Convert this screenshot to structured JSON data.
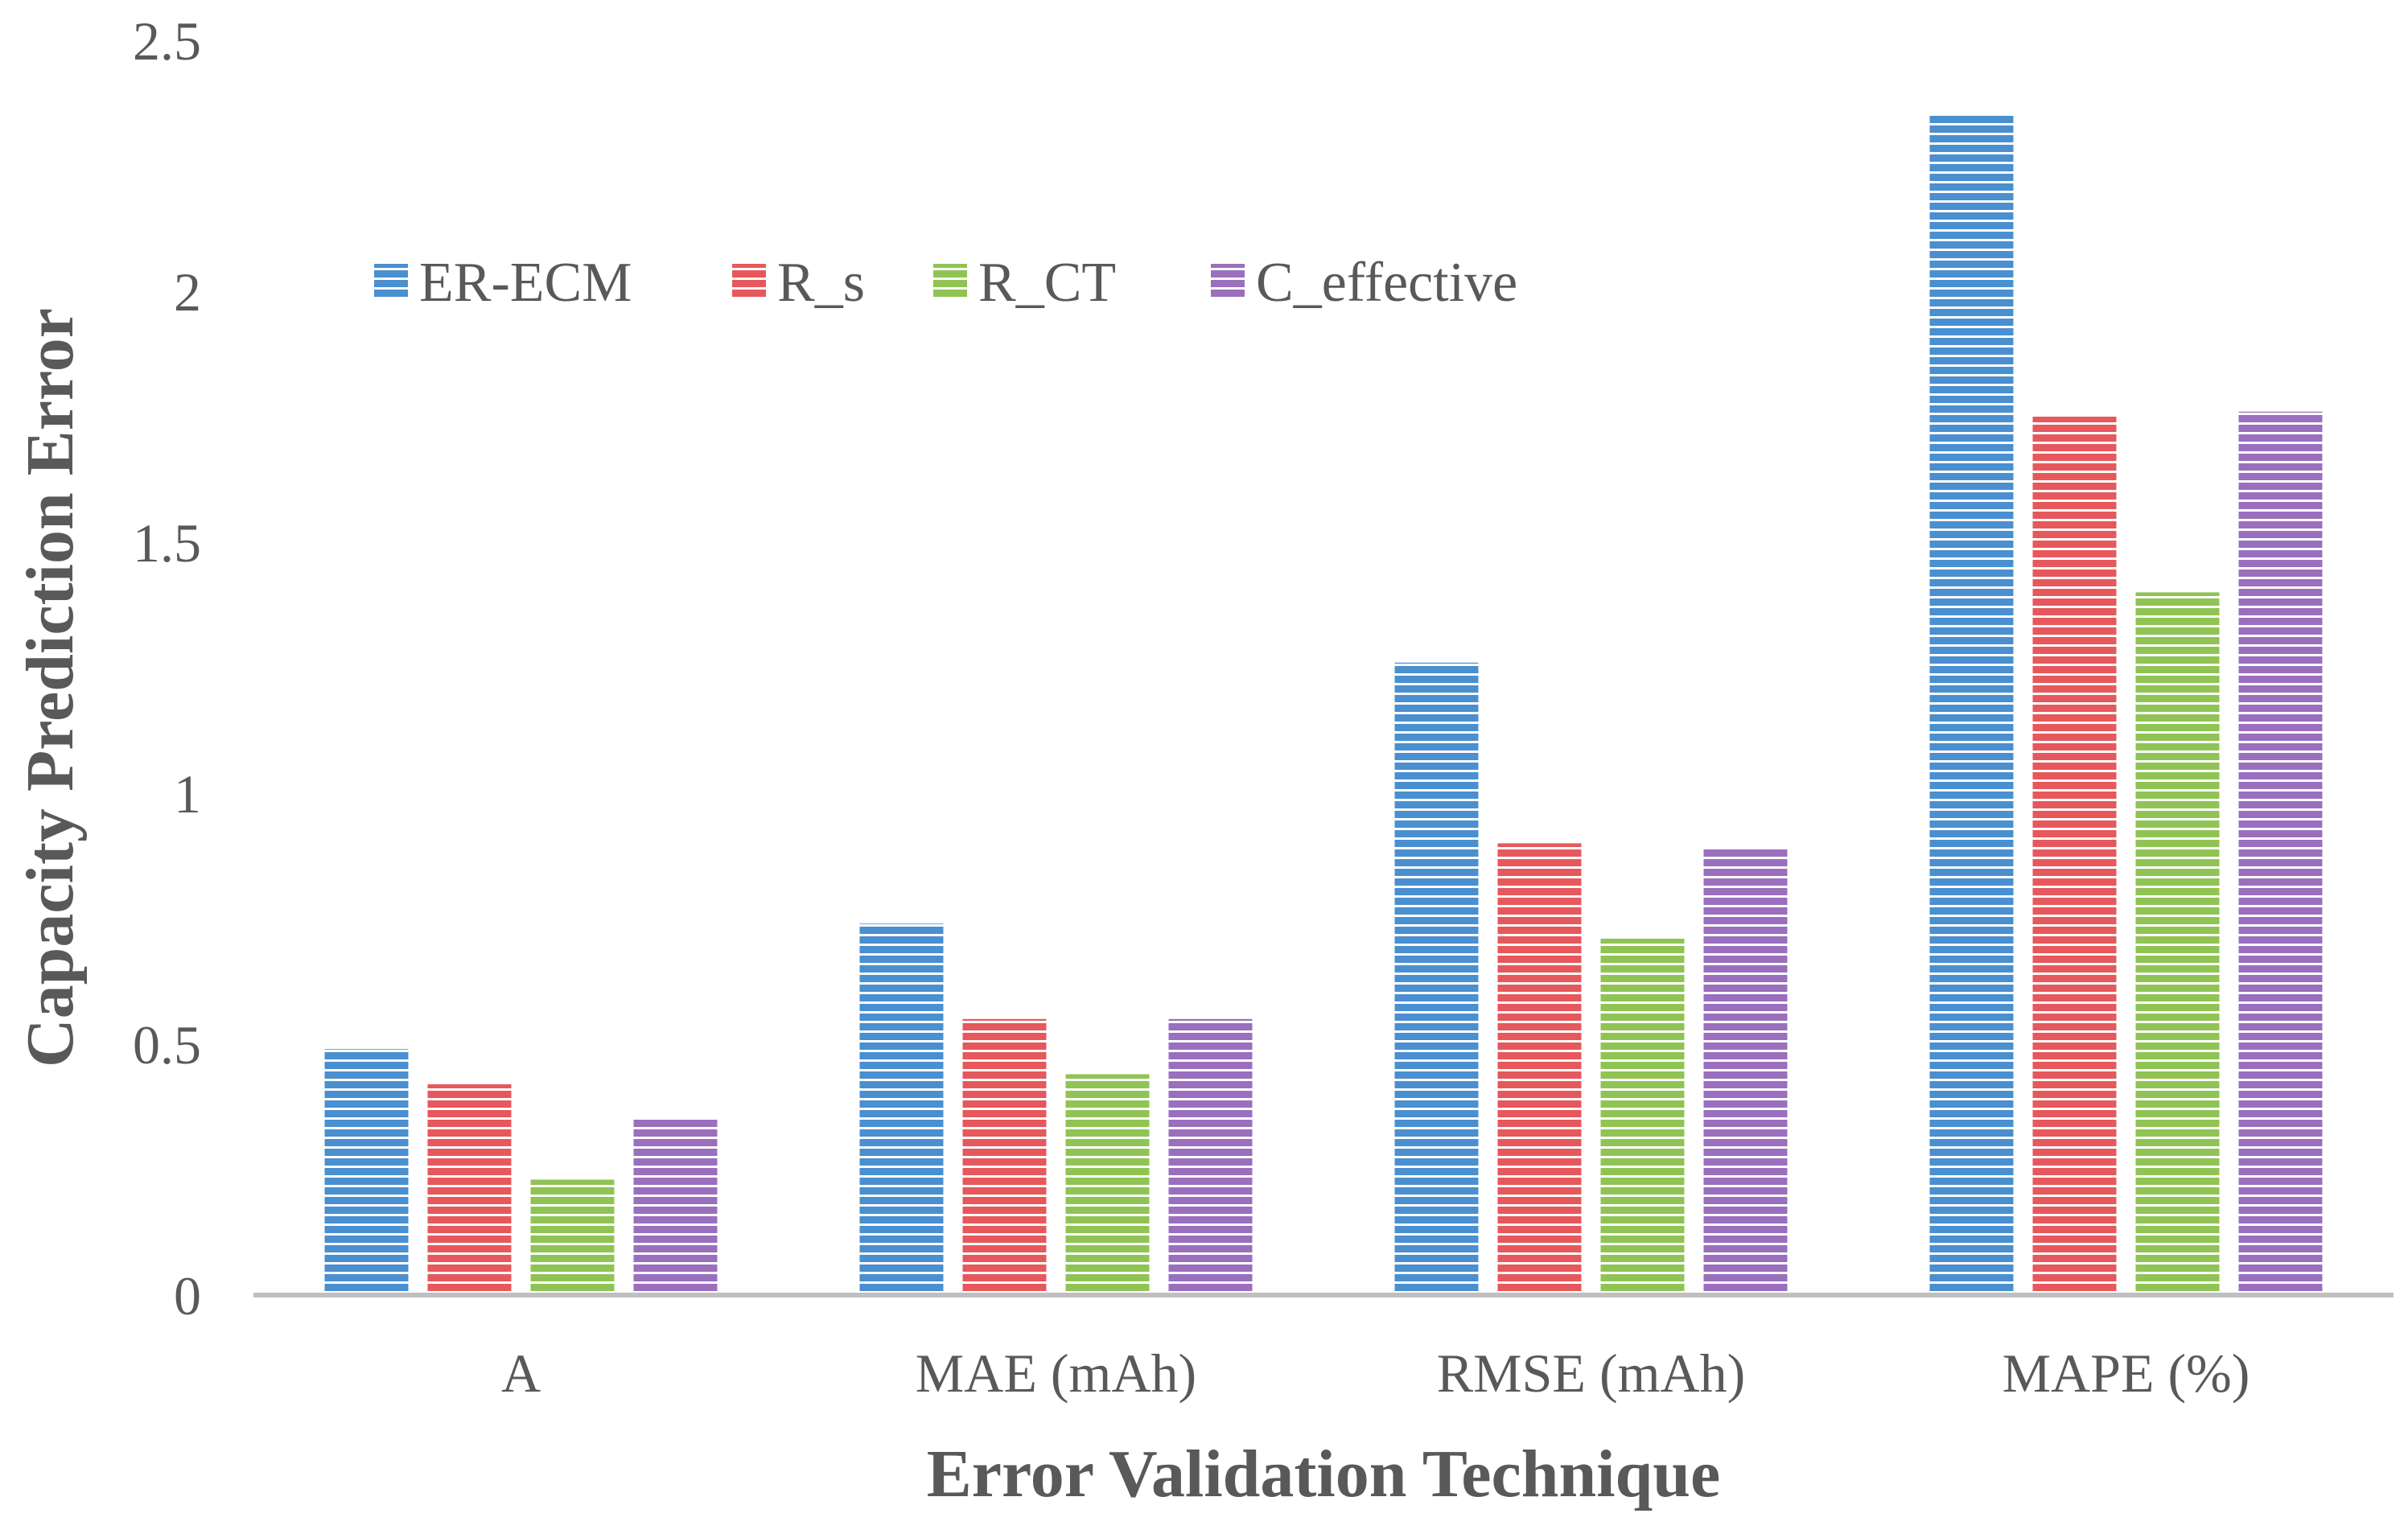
{
  "chart_data": {
    "type": "bar",
    "title": "",
    "xlabel": "Error Validation Technique",
    "ylabel": "Capacity Prediction Error",
    "categories": [
      "A",
      "MAE (mAh)",
      "RMSE (mAh)",
      "MAPE (%)"
    ],
    "series": [
      {
        "name": "ER-ECM",
        "color": "#4a8fd0",
        "values": [
          0.49,
          0.74,
          1.26,
          2.35
        ]
      },
      {
        "name": "R_s",
        "color": "#e6585c",
        "values": [
          0.42,
          0.55,
          0.9,
          1.75
        ]
      },
      {
        "name": "R_CT",
        "color": "#8fc454",
        "values": [
          0.23,
          0.44,
          0.71,
          1.4
        ]
      },
      {
        "name": "C_effective",
        "color": "#9a6fbe",
        "values": [
          0.35,
          0.55,
          0.89,
          1.76
        ]
      }
    ],
    "ylim": [
      0,
      2.5
    ],
    "yticks": [
      0,
      0.5,
      1,
      1.5,
      2,
      2.5
    ],
    "ytick_labels": [
      "0",
      "0.5",
      "1",
      "1.5",
      "2",
      "2.5"
    ],
    "grid": false,
    "legend_position": "top-left"
  }
}
